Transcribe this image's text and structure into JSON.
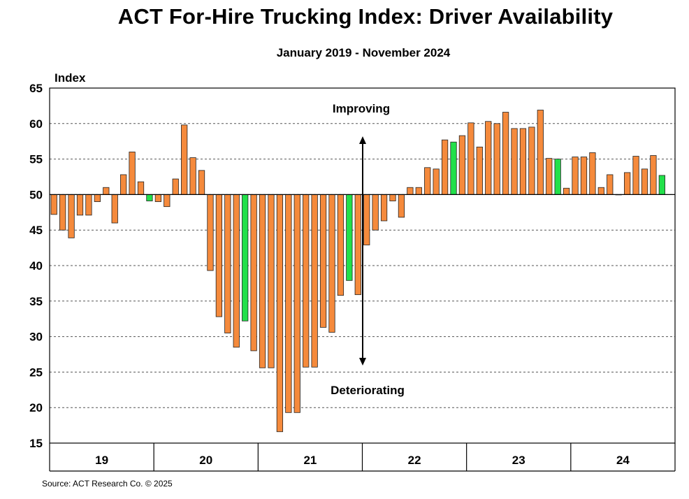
{
  "chart_data": {
    "type": "bar",
    "title": "ACT For-Hire Trucking Index: Driver Availability",
    "subtitle": "January 2019 - November 2024",
    "ylabel": "Index",
    "ylim": [
      15,
      65
    ],
    "yticks": [
      15,
      20,
      25,
      30,
      35,
      40,
      45,
      50,
      55,
      60,
      65
    ],
    "baseline": 50,
    "x_tick_labels": [
      "19",
      "20",
      "21",
      "22",
      "23",
      "24"
    ],
    "grid": true,
    "colors": {
      "bar": "#F58A3C",
      "highlight": "#22E04A",
      "grid": "#555555"
    },
    "annotations": {
      "improving": "Improving",
      "deteriorating": "Deteriorating"
    },
    "source": "Source:  ACT Research Co. © 2025",
    "series": [
      {
        "values": [
          47.2,
          45.0,
          43.9,
          47.1,
          47.1,
          49.0,
          51.0,
          46.0,
          52.8,
          56.0,
          51.8,
          49.1,
          49.0,
          48.3,
          52.2,
          59.8,
          55.2,
          53.4,
          39.3,
          32.8,
          30.5,
          28.5,
          32.2,
          28.0,
          25.6,
          25.6,
          16.6,
          19.3,
          19.3,
          25.7,
          25.7,
          31.3,
          30.6,
          35.8,
          37.9,
          35.9,
          42.9,
          45.0,
          46.3,
          49.1,
          46.8,
          51.0,
          51.0,
          53.8,
          53.6,
          57.7,
          57.4,
          58.3,
          60.1,
          56.7,
          60.3,
          60.0,
          61.6,
          59.3,
          59.3,
          59.5,
          61.9,
          55.1,
          55.0,
          50.9,
          55.3,
          55.3,
          55.9,
          51.0,
          52.8,
          50.0,
          53.1,
          55.4,
          53.6,
          55.5,
          52.7
        ],
        "highlighted": [
          11,
          22,
          34,
          46,
          58,
          70
        ]
      }
    ]
  }
}
